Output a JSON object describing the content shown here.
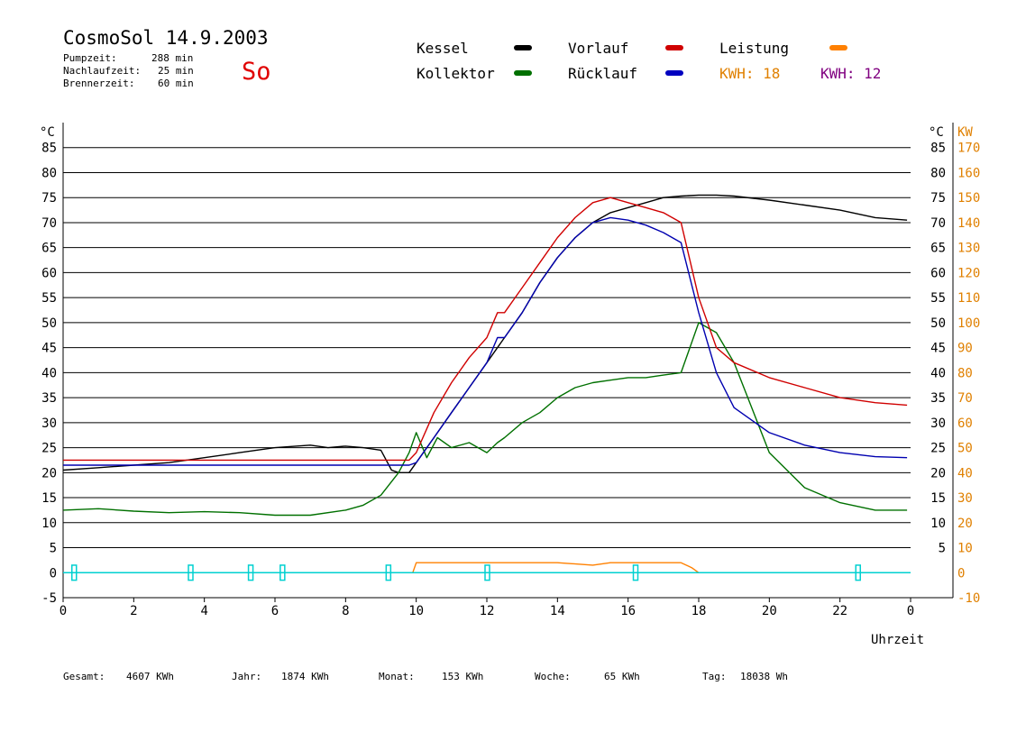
{
  "header": {
    "title": "CosmoSol 14.9.2003",
    "day": "So",
    "pump_label": "Pumpzeit:",
    "pump_value": "288 min",
    "nach_label": "Nachlaufzeit:",
    "nach_value": "25 min",
    "brenner_label": "Brennerzeit:",
    "brenner_value": "60 min"
  },
  "legend": {
    "kessel": "Kessel",
    "kollektor": "Kollektor",
    "vorlauf": "Vorlauf",
    "ruecklauf": "Rücklauf",
    "leistung": "Leistung",
    "kwh1": "KWH: 18",
    "kwh2": "KWH: 12"
  },
  "footer": {
    "gesamt_label": "Gesamt:",
    "gesamt_value": "4607 KWh",
    "jahr_label": "Jahr:",
    "jahr_value": "1874 KWh",
    "monat_label": "Monat:",
    "monat_value": "153 KWh",
    "woche_label": "Woche:",
    "woche_value": "65 KWh",
    "tag_label": "Tag:",
    "tag_value": "18038 Wh"
  },
  "chart_data": {
    "type": "line",
    "xlabel": "Uhrzeit",
    "ylabel_left": "°C",
    "ylabel_right_temp": "°C",
    "ylabel_right_power": "KW",
    "xlim": [
      0,
      24
    ],
    "ylim": [
      -5,
      90
    ],
    "x_ticks": [
      "0",
      "2",
      "4",
      "6",
      "8",
      "10",
      "12",
      "14",
      "16",
      "18",
      "20",
      "22",
      "0"
    ],
    "y_ticks_left": [
      "-5",
      "0",
      "5",
      "10",
      "15",
      "20",
      "25",
      "30",
      "35",
      "40",
      "45",
      "50",
      "55",
      "60",
      "65",
      "70",
      "75",
      "80",
      "85"
    ],
    "y_ticks_right_temp": [
      "5",
      "10",
      "15",
      "20",
      "25",
      "30",
      "35",
      "40",
      "45",
      "50",
      "55",
      "60",
      "65",
      "70",
      "75",
      "80",
      "85"
    ],
    "y_ticks_right_power": [
      "-10",
      "0",
      "10",
      "20",
      "30",
      "40",
      "50",
      "60",
      "70",
      "80",
      "90",
      "100",
      "110",
      "120",
      "130",
      "140",
      "150",
      "160",
      "170"
    ],
    "grid": true,
    "colors": {
      "kessel": "#000000",
      "kollektor": "#007000",
      "vorlauf": "#d00000",
      "ruecklauf": "#0000b0",
      "leistung": "#ff8000",
      "kwh2": "#800080",
      "pump": "#00d0d0",
      "right_axis": "#e08000"
    },
    "series": [
      {
        "name": "Kessel",
        "x": [
          0,
          1,
          2,
          3,
          4,
          5,
          6,
          7,
          7.5,
          8,
          8.5,
          9,
          9.3,
          9.5,
          9.8,
          10,
          10.5,
          11,
          11.5,
          12,
          12.5,
          13,
          13.5,
          14,
          14.5,
          15,
          15.5,
          16,
          16.5,
          17,
          17.5,
          18,
          18.5,
          19,
          20,
          21,
          22,
          23,
          23.9
        ],
        "y": [
          20.5,
          21,
          21.5,
          22,
          23,
          24,
          25,
          25.5,
          25,
          25.3,
          25,
          24.5,
          20.5,
          20,
          20,
          22,
          27,
          32,
          37,
          42,
          47,
          52,
          58,
          63,
          67,
          70,
          72,
          73,
          74,
          75,
          75.3,
          75.5,
          75.5,
          75.3,
          74.5,
          73.5,
          72.5,
          71,
          70.5
        ]
      },
      {
        "name": "Kollektor",
        "x": [
          0,
          1,
          2,
          3,
          4,
          5,
          6,
          7,
          8,
          8.5,
          9,
          9.5,
          9.8,
          10,
          10.3,
          10.6,
          11,
          11.5,
          12,
          12.3,
          12.5,
          13,
          13.5,
          14,
          14.5,
          15,
          15.5,
          16,
          16.5,
          17,
          17.5,
          18,
          18.5,
          19,
          19.5,
          20,
          21,
          22,
          23,
          23.9
        ],
        "y": [
          12.5,
          12.8,
          12.3,
          12,
          12.2,
          12,
          11.5,
          11.5,
          12.5,
          13.5,
          15.5,
          20,
          24,
          28,
          23,
          27,
          25,
          26,
          24,
          26,
          27,
          30,
          32,
          35,
          37,
          38,
          38.5,
          39,
          39,
          39.5,
          40,
          50,
          48,
          42,
          33,
          24,
          17,
          14,
          12.5,
          12.5
        ]
      },
      {
        "name": "Vorlauf",
        "x": [
          0,
          2,
          4,
          6,
          8,
          9,
          9.5,
          9.8,
          10,
          10.5,
          11,
          11.5,
          12,
          12.3,
          12.5,
          13,
          13.5,
          14,
          14.5,
          15,
          15.5,
          16,
          16.5,
          17,
          17.5,
          18,
          18.5,
          19,
          20,
          21,
          22,
          23,
          23.9
        ],
        "y": [
          22.5,
          22.5,
          22.5,
          22.5,
          22.5,
          22.5,
          22.5,
          22.5,
          24,
          32,
          38,
          43,
          47,
          52,
          52,
          57,
          62,
          67,
          71,
          74,
          75,
          74,
          73,
          72,
          70,
          55,
          45,
          42,
          39,
          37,
          35,
          34,
          33.5
        ]
      },
      {
        "name": "Rücklauf",
        "x": [
          0,
          2,
          4,
          6,
          8,
          9,
          9.5,
          9.8,
          10,
          10.5,
          11,
          11.5,
          12,
          12.3,
          12.5,
          13,
          13.5,
          14,
          14.5,
          15,
          15.5,
          16,
          16.5,
          17,
          17.5,
          18,
          18.5,
          19,
          20,
          21,
          22,
          23,
          23.9
        ],
        "y": [
          21.5,
          21.5,
          21.5,
          21.5,
          21.5,
          21.5,
          21.5,
          21.5,
          22,
          27,
          32,
          37,
          42,
          47,
          47,
          52,
          58,
          63,
          67,
          70,
          71,
          70.5,
          69.5,
          68,
          66,
          52,
          40,
          33,
          28,
          25.5,
          24,
          23.2,
          23
        ]
      },
      {
        "name": "Leistung",
        "x": [
          0,
          9.9,
          10,
          11,
          12,
          12.5,
          13,
          14,
          15,
          15.5,
          16,
          17,
          17.5,
          17.8,
          18,
          24
        ],
        "y": [
          0,
          0,
          2,
          2,
          2,
          2,
          2,
          2,
          1.5,
          2,
          2,
          2,
          2,
          1,
          0,
          0
        ]
      },
      {
        "name": "Pumpe",
        "x": [
          0.3,
          3.6,
          5.3,
          6.2,
          9.2,
          12,
          16.2,
          22.5
        ],
        "y": [
          0,
          0,
          0,
          0,
          0,
          0,
          0,
          0
        ]
      }
    ]
  }
}
